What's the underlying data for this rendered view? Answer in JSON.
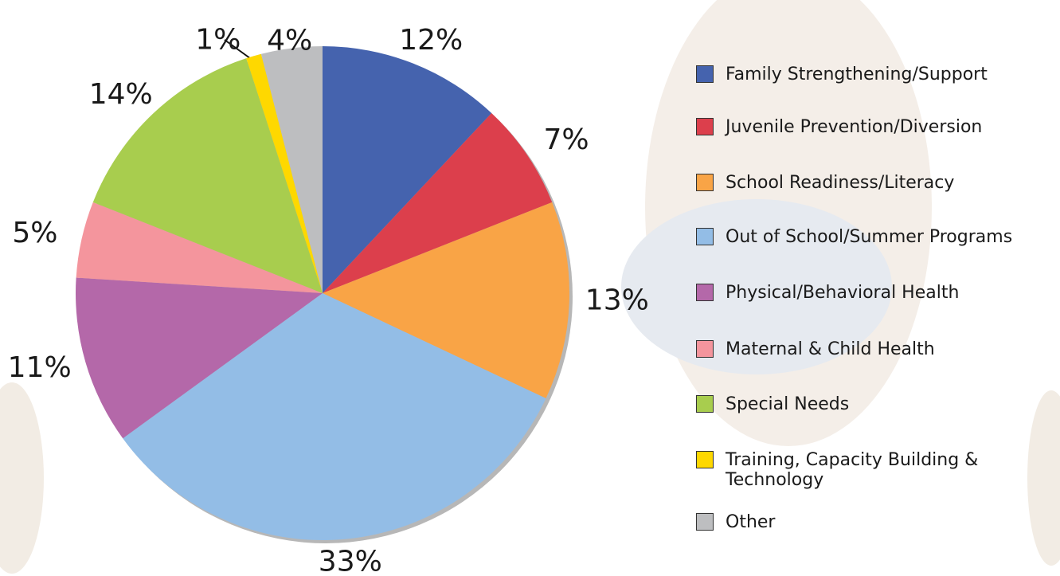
{
  "chart_data": {
    "type": "pie",
    "series": [
      {
        "name": "Family Strengthening/Support",
        "color": "#4563ae",
        "values": [
          12
        ]
      },
      {
        "name": "Juvenile Prevention/Diversion",
        "color": "#dc3f4c",
        "values": [
          7
        ]
      },
      {
        "name": "School Readiness/Literacy",
        "color": "#f9a446",
        "values": [
          13
        ]
      },
      {
        "name": "Out of School/Summer Programs",
        "color": "#93bde6",
        "values": [
          33
        ]
      },
      {
        "name": "Physical/Behavioral Health",
        "color": "#b468a9",
        "values": [
          11
        ]
      },
      {
        "name": "Maternal & Child Health",
        "color": "#f4959d",
        "values": [
          5
        ]
      },
      {
        "name": "Special Needs",
        "color": "#a8cd4e",
        "values": [
          14
        ]
      },
      {
        "name": "Training, Capacity Building & Technology",
        "color": "#fed800",
        "values": [
          1
        ]
      },
      {
        "name": "Other",
        "color": "#bdbec0",
        "values": [
          4
        ]
      }
    ],
    "value_labels": [
      "12%",
      "7%",
      "13%",
      "33%",
      "11%",
      "5%",
      "14%",
      "1%",
      "4%"
    ],
    "legend": "right"
  }
}
